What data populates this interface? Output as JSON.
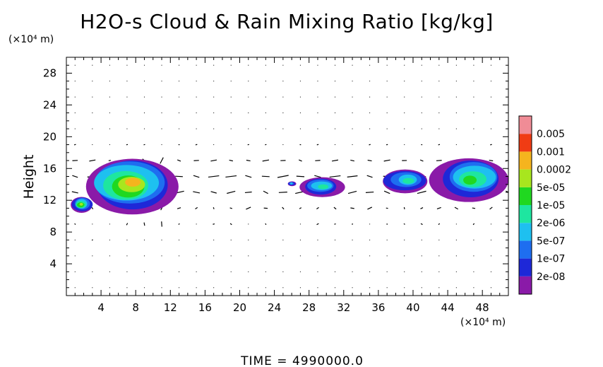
{
  "chart_data": {
    "type": "heatmap",
    "title": "H2O-s Cloud & Rain Mixing Ratio [kg/kg]",
    "ylabel": "Height",
    "xunit": "(×10⁴ m)",
    "yunit": "(×10⁴ m)",
    "footer": "TIME  =  4990000.0",
    "xlim": [
      0,
      51
    ],
    "ylim": [
      0,
      30
    ],
    "xticks": [
      4,
      8,
      12,
      16,
      20,
      24,
      28,
      32,
      36,
      40,
      44,
      48
    ],
    "yticks": [
      4,
      8,
      12,
      16,
      20,
      24,
      28
    ],
    "xtick_labels": [
      "4",
      "8",
      "12",
      "16",
      "20",
      "24",
      "28",
      "32",
      "36",
      "40",
      "44",
      "48"
    ],
    "ytick_labels": [
      "4",
      "8",
      "12",
      "16",
      "20",
      "24",
      "28"
    ],
    "colorbar": {
      "levels": [
        "2e-08",
        "1e-07",
        "5e-07",
        "2e-06",
        "1e-05",
        "5e-05",
        "0.0002",
        "0.001",
        "0.005"
      ],
      "colors": [
        "#8a1aa8",
        "#1e28d8",
        "#1e6ef0",
        "#1ec0f0",
        "#1ee6a0",
        "#20d820",
        "#a8e61e",
        "#f5b41e",
        "#f03c14",
        "#f08c96"
      ]
    },
    "cloud_regions": [
      {
        "x_range": [
          0.5,
          3
        ],
        "y_range": [
          10.5,
          12.5
        ],
        "peak_level": "5e-05"
      },
      {
        "x_range": [
          2,
          12.5
        ],
        "y_range": [
          10.5,
          17.5
        ],
        "peak_level": "0.0002"
      },
      {
        "x_range": [
          25.5,
          26.5
        ],
        "y_range": [
          13.8,
          14.4
        ],
        "peak_level": "5e-07"
      },
      {
        "x_range": [
          27,
          32
        ],
        "y_range": [
          12.5,
          15
        ],
        "peak_level": "2e-06"
      },
      {
        "x_range": [
          36.5,
          42
        ],
        "y_range": [
          13,
          16
        ],
        "peak_level": "2e-06"
      },
      {
        "x_range": [
          42.5,
          51
        ],
        "y_range": [
          12,
          17.5
        ],
        "peak_level": "1e-05"
      }
    ],
    "wind_vectors": "present"
  }
}
